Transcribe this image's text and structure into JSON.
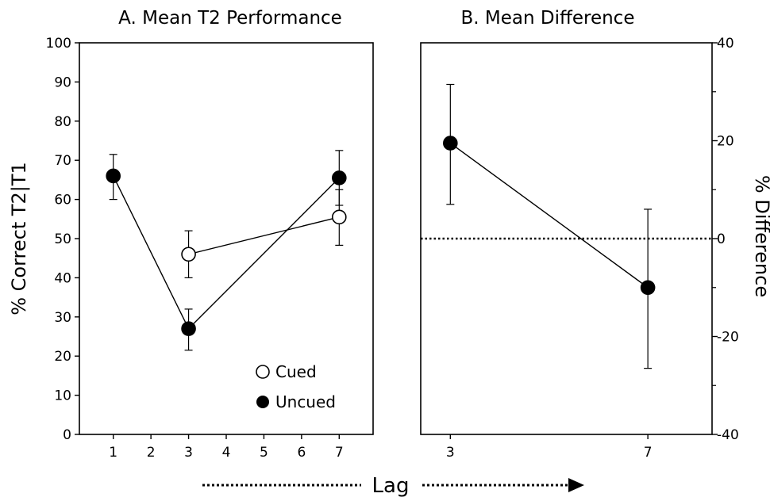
{
  "chart_data": [
    {
      "type": "line",
      "title": "A.  Mean T2 Performance",
      "xlabel": "Lag",
      "ylabel": "% Correct T2|T1",
      "xlim": [
        0.1,
        7.9
      ],
      "ylim": [
        0,
        100
      ],
      "x_ticks": [
        1,
        2,
        3,
        4,
        5,
        6,
        7
      ],
      "y_ticks": [
        0,
        10,
        20,
        30,
        40,
        50,
        60,
        70,
        80,
        90,
        100
      ],
      "legend_position": "bottom-right",
      "series": [
        {
          "name": "Cued",
          "marker": "open-circle",
          "x": [
            3,
            7
          ],
          "y": [
            46,
            55.5
          ],
          "err_low": [
            40,
            48.3
          ],
          "err_high": [
            52,
            62.5
          ]
        },
        {
          "name": "Uncued",
          "marker": "filled-circle",
          "x": [
            1,
            3,
            7
          ],
          "y": [
            66,
            27,
            65.5
          ],
          "err_low": [
            60,
            21.5,
            58.5
          ],
          "err_high": [
            71.5,
            32,
            72.5
          ]
        }
      ]
    },
    {
      "type": "line",
      "title": "B.  Mean Difference",
      "xlabel": "Lag",
      "ylabel": "% Difference",
      "ylabel_side": "right",
      "xlim": [
        2.4,
        8.3
      ],
      "ylim": [
        -40,
        40
      ],
      "x_ticks": [
        3,
        7
      ],
      "y_ticks": [
        -40,
        -20,
        0,
        20,
        40
      ],
      "y_minor_ticks": [
        -30,
        -10,
        10,
        30
      ],
      "reference_line": {
        "y": 0,
        "style": "dotted"
      },
      "series": [
        {
          "name": "",
          "marker": "filled-circle",
          "x": [
            3,
            7
          ],
          "y": [
            19.5,
            -10
          ],
          "err_low": [
            7,
            -26.5
          ],
          "err_high": [
            31.5,
            6
          ]
        }
      ]
    }
  ],
  "footer": {
    "xlabel": "Lag",
    "arrow": "dotted-right"
  }
}
